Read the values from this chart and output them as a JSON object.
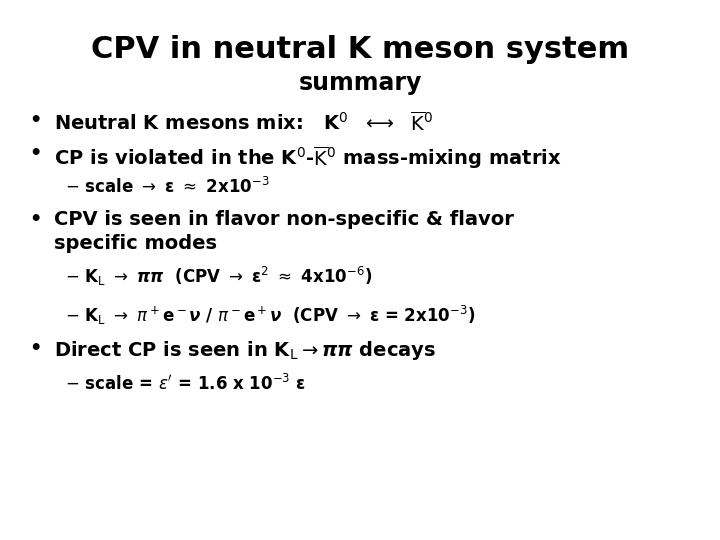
{
  "title_line1": "CPV in neutral K meson system",
  "title_line2": "summary",
  "background_color": "#ffffff",
  "text_color": "#000000",
  "title_fontsize": 22,
  "subtitle_fontsize": 17,
  "bullet_fontsize": 14,
  "sub_bullet_fontsize": 12
}
